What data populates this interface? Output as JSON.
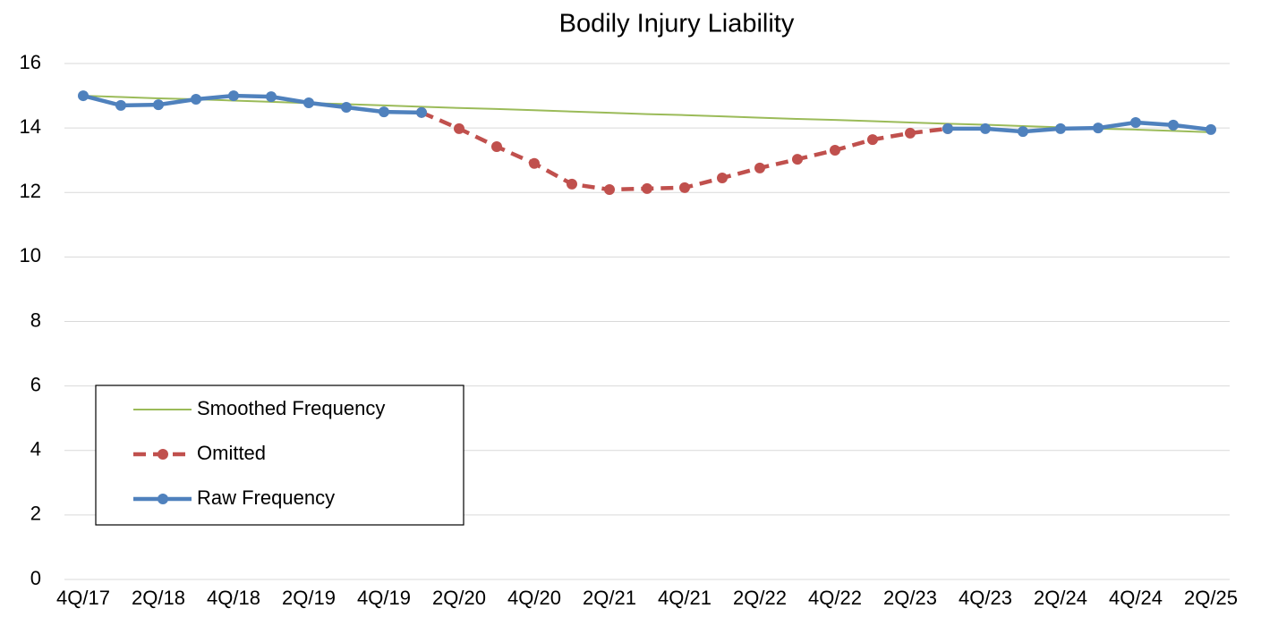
{
  "chart_data": {
    "type": "line",
    "title": "Bodily Injury Liability",
    "categories": [
      "4Q/17",
      null,
      "2Q/18",
      null,
      "4Q/18",
      null,
      "2Q/19",
      null,
      "4Q/19",
      null,
      "2Q/20",
      null,
      "4Q/20",
      null,
      "2Q/21",
      null,
      "4Q/21",
      null,
      "2Q/22",
      null,
      "4Q/22",
      null,
      "2Q/23",
      null,
      "4Q/23",
      null,
      "2Q/24",
      null,
      "4Q/24",
      null,
      "2Q/25"
    ],
    "series": [
      {
        "name": "Smoothed Frequency",
        "color": "#9bbb59",
        "line_style": "solid",
        "markers": false,
        "values": [
          15.0,
          14.96,
          14.92,
          14.89,
          14.85,
          14.81,
          14.77,
          14.74,
          14.7,
          14.66,
          14.62,
          14.59,
          14.55,
          14.51,
          14.47,
          14.43,
          14.4,
          14.36,
          14.32,
          14.28,
          14.25,
          14.21,
          14.17,
          14.13,
          14.1,
          14.06,
          14.02,
          13.98,
          13.95,
          13.91,
          13.87
        ]
      },
      {
        "name": "Omitted",
        "color": "#c0504d",
        "line_style": "dashed",
        "markers": true,
        "values": [
          null,
          null,
          null,
          null,
          null,
          null,
          null,
          null,
          null,
          14.48,
          13.98,
          13.42,
          12.9,
          12.26,
          12.09,
          12.12,
          12.15,
          12.45,
          12.76,
          13.03,
          13.31,
          13.64,
          13.84,
          13.98,
          null,
          null,
          null,
          null,
          null,
          null,
          null
        ]
      },
      {
        "name": "Raw Frequency",
        "color": "#4f81bd",
        "line_style": "solid",
        "markers": true,
        "values": [
          15.0,
          14.7,
          14.72,
          14.89,
          15.0,
          14.97,
          14.78,
          14.64,
          14.5,
          14.48,
          null,
          null,
          null,
          null,
          null,
          null,
          null,
          null,
          null,
          null,
          null,
          null,
          null,
          13.98,
          13.98,
          13.89,
          13.98,
          14.0,
          14.17,
          14.09,
          13.95
        ]
      }
    ],
    "ylim": [
      0,
      16
    ],
    "yticks": [
      0,
      2,
      4,
      6,
      8,
      10,
      12,
      14,
      16
    ],
    "grid": true,
    "legend": "lower left"
  }
}
